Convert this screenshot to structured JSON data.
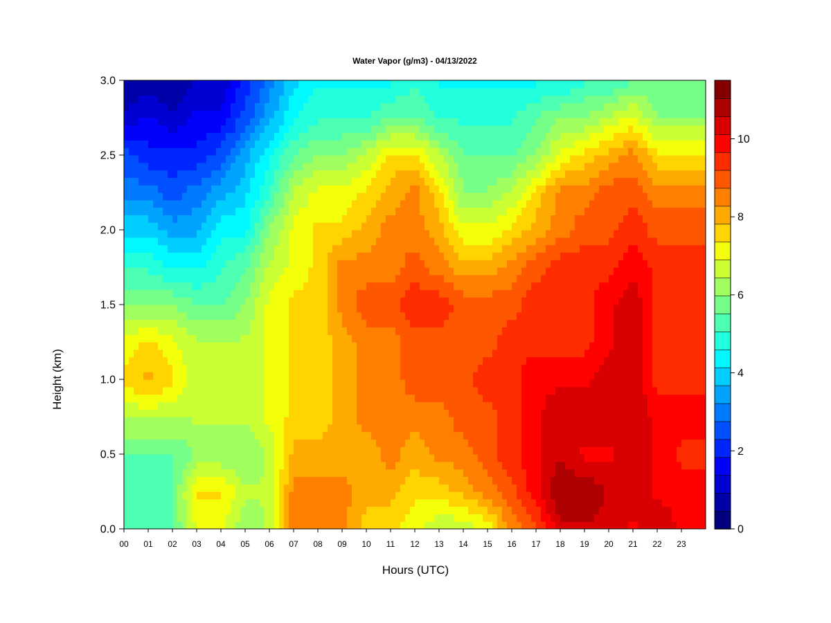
{
  "chart_data": {
    "type": "heatmap",
    "title": "Water Vapor (g/m3) - 04/13/2022",
    "xlabel": "Hours (UTC)",
    "ylabel": "Height (km)",
    "x_ticks": [
      "00",
      "01",
      "02",
      "03",
      "04",
      "05",
      "06",
      "07",
      "08",
      "09",
      "10",
      "11",
      "12",
      "13",
      "14",
      "15",
      "16",
      "17",
      "18",
      "19",
      "20",
      "21",
      "22",
      "23"
    ],
    "y_ticks": [
      "0.0",
      "0.5",
      "1.0",
      "1.5",
      "2.0",
      "2.5",
      "3.0"
    ],
    "xlim": [
      0,
      24
    ],
    "ylim": [
      0,
      3.0
    ],
    "colorbar": {
      "range": [
        0,
        11.5
      ],
      "ticks": [
        "0",
        "2",
        "4",
        "6",
        "8",
        "10"
      ],
      "tick_values": [
        0,
        2,
        4,
        6,
        8,
        10
      ],
      "levels": 23,
      "colors": [
        "#00007f",
        "#0000a8",
        "#0000d2",
        "#0000fc",
        "#0026ff",
        "#0050ff",
        "#007aff",
        "#00a4ff",
        "#00ceff",
        "#00f8ff",
        "#22ffdc",
        "#4cffb2",
        "#76ff88",
        "#a0ff5e",
        "#caff34",
        "#f4ff0a",
        "#ffd400",
        "#ffaa00",
        "#ff8000",
        "#ff5600",
        "#ff2c00",
        "#ff0200",
        "#d80000",
        "#ae0000",
        "#840000"
      ]
    },
    "heights_km": [
      0.0,
      0.25,
      0.5,
      0.75,
      1.0,
      1.25,
      1.5,
      1.75,
      2.0,
      2.25,
      2.5,
      2.75,
      3.0
    ],
    "hours": [
      0,
      1,
      2,
      3,
      4,
      5,
      6,
      7,
      8,
      9,
      10,
      11,
      12,
      13,
      14,
      15,
      16,
      17,
      18,
      19,
      20,
      21,
      22,
      23,
      24
    ],
    "values": [
      [
        5.5,
        5.5,
        5.5,
        7.0,
        7.0,
        6.0,
        6.5,
        8.5,
        8.5,
        8.5,
        7.5,
        7.5,
        7.0,
        6.5,
        6.5,
        7.0,
        8.5,
        9.0,
        10.5,
        10.5,
        10.5,
        10.0,
        10.5,
        10.0,
        10.0
      ],
      [
        5.5,
        5.5,
        5.5,
        7.5,
        7.5,
        6.5,
        6.5,
        8.5,
        8.5,
        8.5,
        8.0,
        8.0,
        7.5,
        7.5,
        8.0,
        8.5,
        9.0,
        10.0,
        11.0,
        11.0,
        10.5,
        10.5,
        10.0,
        10.0,
        10.0
      ],
      [
        5.5,
        5.5,
        5.5,
        6.0,
        6.0,
        6.0,
        6.5,
        8.0,
        8.0,
        8.0,
        8.0,
        8.5,
        8.0,
        8.5,
        8.5,
        9.0,
        9.5,
        10.0,
        10.5,
        10.0,
        10.0,
        10.5,
        10.0,
        9.5,
        9.5
      ],
      [
        6.5,
        6.5,
        6.5,
        6.5,
        6.5,
        6.5,
        7.0,
        7.5,
        7.5,
        8.0,
        8.5,
        8.5,
        8.5,
        8.5,
        9.0,
        9.0,
        9.5,
        10.0,
        10.5,
        10.5,
        10.5,
        10.5,
        10.0,
        10.0,
        10.0
      ],
      [
        7.5,
        8.0,
        7.5,
        6.5,
        6.5,
        6.5,
        7.0,
        7.5,
        7.5,
        8.0,
        8.5,
        8.5,
        9.0,
        9.0,
        9.0,
        9.5,
        9.5,
        10.0,
        10.0,
        10.0,
        10.5,
        10.5,
        9.5,
        9.5,
        9.5
      ],
      [
        7.0,
        7.5,
        7.0,
        6.5,
        6.5,
        6.5,
        7.0,
        7.5,
        7.5,
        8.0,
        8.5,
        8.5,
        9.0,
        9.0,
        9.0,
        9.0,
        9.5,
        9.5,
        9.5,
        9.5,
        10.0,
        10.5,
        9.5,
        9.5,
        9.5
      ],
      [
        6.0,
        6.0,
        6.0,
        5.5,
        5.5,
        6.0,
        7.0,
        7.5,
        7.5,
        8.5,
        9.0,
        9.0,
        9.5,
        9.5,
        9.0,
        9.0,
        9.0,
        9.5,
        9.5,
        9.5,
        10.0,
        10.5,
        9.5,
        9.5,
        9.5
      ],
      [
        5.0,
        5.0,
        4.5,
        4.5,
        5.0,
        5.5,
        6.5,
        7.0,
        7.5,
        8.5,
        8.5,
        8.5,
        9.0,
        8.5,
        8.0,
        8.0,
        8.5,
        9.0,
        9.5,
        9.5,
        9.5,
        10.0,
        9.5,
        9.5,
        9.5
      ],
      [
        4.0,
        4.0,
        3.5,
        3.5,
        4.5,
        4.5,
        6.0,
        7.0,
        7.5,
        7.5,
        8.0,
        8.5,
        8.5,
        8.0,
        7.0,
        7.0,
        7.5,
        8.0,
        8.5,
        9.0,
        9.0,
        9.5,
        9.0,
        9.0,
        9.0
      ],
      [
        3.0,
        3.0,
        2.5,
        3.0,
        3.5,
        4.0,
        5.0,
        6.5,
        7.0,
        7.0,
        7.5,
        8.0,
        8.5,
        7.5,
        6.0,
        6.0,
        6.5,
        7.5,
        8.5,
        8.5,
        9.0,
        9.0,
        8.5,
        8.5,
        8.5
      ],
      [
        2.5,
        2.0,
        2.0,
        2.0,
        2.5,
        3.5,
        4.5,
        5.5,
        6.0,
        6.0,
        6.5,
        7.5,
        7.5,
        6.5,
        5.5,
        5.5,
        5.5,
        6.0,
        7.0,
        7.5,
        8.0,
        8.5,
        7.5,
        7.5,
        7.5
      ],
      [
        1.0,
        1.5,
        1.0,
        1.5,
        1.5,
        2.5,
        3.5,
        4.5,
        5.0,
        5.0,
        5.0,
        5.5,
        5.5,
        5.0,
        5.0,
        5.0,
        5.0,
        5.5,
        6.0,
        6.0,
        6.5,
        7.0,
        6.0,
        6.0,
        6.0
      ],
      [
        0.5,
        0.5,
        0.5,
        1.0,
        1.0,
        2.0,
        3.0,
        4.0,
        4.5,
        4.5,
        4.5,
        4.5,
        5.0,
        4.5,
        4.5,
        4.5,
        4.5,
        4.5,
        4.5,
        5.0,
        5.0,
        5.5,
        5.5,
        5.5,
        5.5
      ]
    ]
  }
}
